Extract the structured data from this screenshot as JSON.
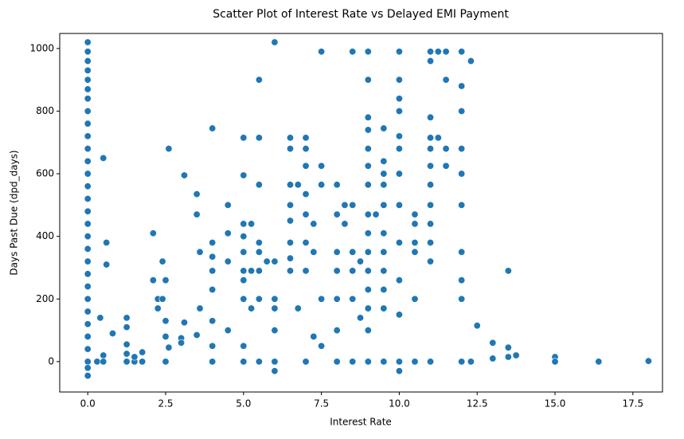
{
  "chart_data": {
    "type": "scatter",
    "title": "Scatter Plot of Interest Rate vs Delayed EMI Payment",
    "x_label": "Interest Rate",
    "y_label": "Days Past Due (dpd_days)",
    "color": "#1f77b4",
    "xlim": [
      -0.9,
      18.45
    ],
    "ylim": [
      -97,
      1048
    ],
    "xticks": [
      {
        "value": 0,
        "label": "0.0"
      },
      {
        "value": 2.5,
        "label": "2.5"
      },
      {
        "value": 5,
        "label": "5.0"
      },
      {
        "value": 7.5,
        "label": "7.5"
      },
      {
        "value": 10,
        "label": "10.0"
      },
      {
        "value": 12.5,
        "label": "12.5"
      },
      {
        "value": 15,
        "label": "15.0"
      },
      {
        "value": 17.5,
        "label": "17.5"
      }
    ],
    "yticks": [
      0,
      200,
      400,
      600,
      800,
      1000
    ],
    "x": [
      0,
      0,
      0,
      0,
      0,
      0,
      0,
      0,
      0,
      0,
      0,
      0,
      0,
      0,
      0,
      0,
      0,
      0,
      0,
      0,
      0,
      0,
      0,
      0,
      0,
      0,
      0,
      0,
      0,
      0,
      0.3,
      0.4,
      0.5,
      0.5,
      0.5,
      0.6,
      0.6,
      0.8,
      1.25,
      1.25,
      1.25,
      1.25,
      1.25,
      1.5,
      1.5,
      1.75,
      1.75,
      2.1,
      2.1,
      2.25,
      2.25,
      2.4,
      2.4,
      2.5,
      2.5,
      2.5,
      2.5,
      2.6,
      2.6,
      3.0,
      3.0,
      3.1,
      3.1,
      3.5,
      3.5,
      3.5,
      3.6,
      3.6,
      4,
      4,
      4,
      4,
      4,
      4,
      4,
      4,
      4.5,
      4.5,
      4.5,
      4.5,
      5,
      5,
      5,
      5,
      5,
      5,
      5,
      5,
      5,
      5,
      5.25,
      5.25,
      5.25,
      5.5,
      5.5,
      5.5,
      5.5,
      5.5,
      5.5,
      5.5,
      5.5,
      5.75,
      6,
      6,
      6,
      6,
      6,
      6,
      6,
      6.5,
      6.5,
      6.5,
      6.5,
      6.5,
      6.5,
      6.5,
      6.5,
      6.75,
      6.75,
      7,
      7,
      7,
      7,
      7,
      7,
      7,
      7,
      7.25,
      7.25,
      7.25,
      7.5,
      7.5,
      7.5,
      7.5,
      7.5,
      8,
      8,
      8,
      8,
      8,
      8,
      8,
      8.25,
      8.25,
      8.5,
      8.5,
      8.5,
      8.5,
      8.5,
      8.5,
      8.75,
      8.75,
      9,
      9,
      9,
      9,
      9,
      9,
      9,
      9,
      9,
      9,
      9,
      9,
      9,
      9,
      9,
      9.25,
      9.5,
      9.5,
      9.5,
      9.5,
      9.5,
      9.5,
      9.5,
      9.5,
      9.5,
      9.5,
      9.5,
      10,
      10,
      10,
      10,
      10,
      10,
      10,
      10,
      10,
      10,
      10,
      10,
      10,
      10.5,
      10.5,
      10.5,
      10.5,
      10.5,
      10.5,
      11,
      11,
      11,
      11,
      11,
      11,
      11,
      11,
      11,
      11,
      11,
      11,
      11.25,
      11.25,
      11.5,
      11.5,
      11.5,
      11.5,
      12,
      12,
      12,
      12,
      12,
      12,
      12,
      12,
      12,
      12,
      12.3,
      12.3,
      12.5,
      13,
      13,
      13.5,
      13.5,
      13.5,
      13.75,
      15,
      15,
      16.4,
      18
    ],
    "values": [
      1020,
      990,
      960,
      930,
      900,
      870,
      840,
      800,
      760,
      720,
      680,
      640,
      600,
      560,
      520,
      480,
      440,
      400,
      360,
      320,
      280,
      240,
      200,
      160,
      120,
      80,
      40,
      0,
      -20,
      -45,
      0,
      140,
      650,
      20,
      0,
      380,
      310,
      90,
      140,
      110,
      55,
      25,
      0,
      0,
      15,
      30,
      0,
      410,
      260,
      200,
      170,
      320,
      200,
      260,
      130,
      0,
      80,
      680,
      45,
      75,
      60,
      595,
      125,
      535,
      470,
      85,
      350,
      170,
      745,
      380,
      335,
      290,
      230,
      130,
      50,
      0,
      500,
      410,
      320,
      100,
      715,
      595,
      440,
      400,
      350,
      290,
      260,
      200,
      50,
      0,
      440,
      290,
      170,
      900,
      715,
      565,
      380,
      350,
      290,
      200,
      0,
      320,
      1020,
      320,
      200,
      170,
      100,
      0,
      -30,
      715,
      680,
      565,
      500,
      450,
      380,
      330,
      290,
      565,
      170,
      715,
      680,
      625,
      535,
      470,
      380,
      290,
      0,
      440,
      350,
      80,
      990,
      625,
      565,
      200,
      50,
      565,
      470,
      350,
      290,
      200,
      100,
      0,
      500,
      440,
      990,
      500,
      350,
      290,
      200,
      0,
      320,
      140,
      990,
      900,
      780,
      740,
      680,
      625,
      565,
      470,
      410,
      350,
      290,
      230,
      170,
      100,
      0,
      470,
      745,
      640,
      600,
      565,
      500,
      410,
      350,
      290,
      230,
      170,
      0,
      990,
      900,
      840,
      800,
      720,
      680,
      600,
      500,
      380,
      260,
      150,
      0,
      -30,
      470,
      440,
      380,
      350,
      200,
      0,
      990,
      960,
      780,
      715,
      680,
      625,
      565,
      500,
      440,
      380,
      320,
      0,
      990,
      715,
      990,
      900,
      680,
      625,
      990,
      880,
      800,
      680,
      600,
      500,
      350,
      260,
      200,
      0,
      960,
      0,
      115,
      60,
      10,
      290,
      45,
      15,
      20,
      15,
      0,
      0,
      2
    ]
  }
}
